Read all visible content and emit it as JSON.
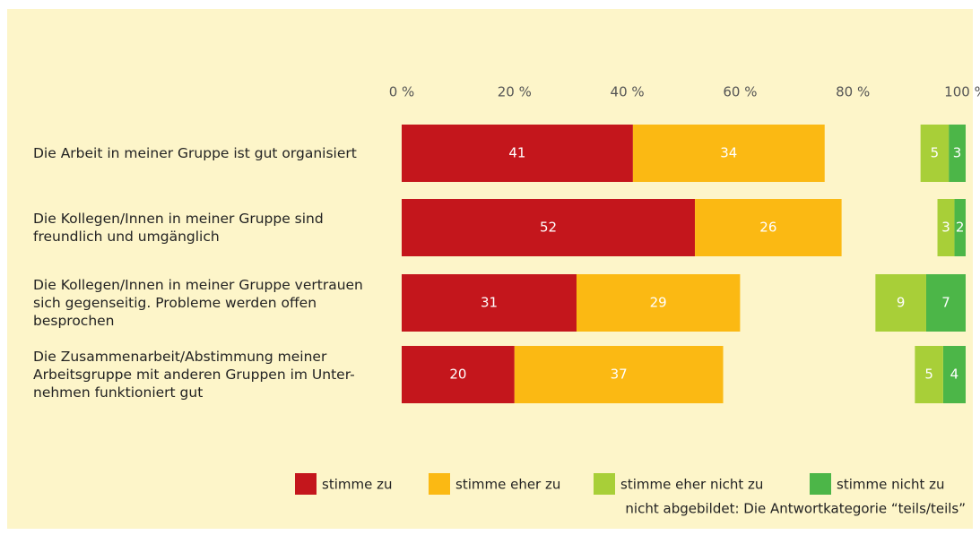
{
  "chart_data": {
    "type": "bar",
    "orientation": "horizontal",
    "categories": [
      "Die Arbeit in meiner Gruppe ist gut organisiert",
      "Die Kollegen/Innen in meiner Gruppe sind\nfreundlich und umgänglich",
      "Die Kollegen/Innen in meiner Gruppe vertrauen\nsich gegenseitig. Probleme werden offen\nbesprochen",
      "Die Zusammenarbeit/Abstimmung meiner\nArbeitsgruppe mit anderen Gruppen im Unter-\nnehmen funktioniert gut"
    ],
    "series": [
      {
        "name": "stimme zu",
        "color": "#c4161c",
        "side": "left",
        "values": [
          41,
          52,
          31,
          20
        ]
      },
      {
        "name": "stimme eher zu",
        "color": "#fbb913",
        "side": "left",
        "values": [
          34,
          26,
          29,
          37
        ]
      },
      {
        "name": "stimme eher nicht zu",
        "color": "#a8cf38",
        "side": "right",
        "values": [
          5,
          3,
          9,
          5
        ]
      },
      {
        "name": "stimme nicht zu",
        "color": "#4cb648",
        "side": "right",
        "values": [
          3,
          2,
          7,
          4
        ]
      }
    ],
    "xlim": [
      0,
      100
    ],
    "xticks": [
      {
        "value": 0,
        "label": "0 %"
      },
      {
        "value": 20,
        "label": "20 %"
      },
      {
        "value": 40,
        "label": "40 %"
      },
      {
        "value": 60,
        "label": "60 %"
      },
      {
        "value": 80,
        "label": "80 %"
      },
      {
        "value": 100,
        "label": "100 %"
      }
    ],
    "note": "nicht abgebildet: Die Antwortkategorie “teils/teils”"
  }
}
